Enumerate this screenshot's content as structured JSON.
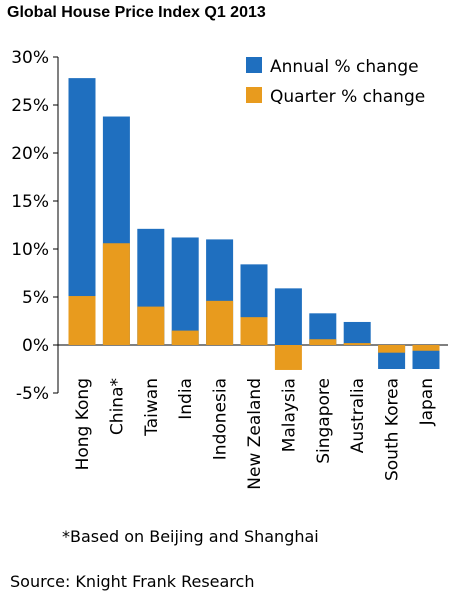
{
  "title": "Global House Price Index Q1 2013",
  "footnote": "*Based on Beijing and Shanghai",
  "source": "Source: Knight Frank Research",
  "chart_data": {
    "type": "bar",
    "title": "Global House Price Index Q1 2013",
    "categories": [
      "Hong Kong",
      "China*",
      "Taiwan",
      "India",
      "Indonesia",
      "New Zealand",
      "Malaysia",
      "Singapore",
      "Australia",
      "South Korea",
      "Japan"
    ],
    "series": [
      {
        "name": "Annual % change",
        "color": "#1F6FBF",
        "values": [
          27.8,
          23.8,
          12.1,
          11.2,
          11.0,
          8.4,
          5.9,
          3.3,
          2.4,
          -2.5,
          -2.5
        ]
      },
      {
        "name": "Quarter % change",
        "color": "#E89B1E",
        "values": [
          5.1,
          10.6,
          4.0,
          1.5,
          4.6,
          2.9,
          -2.6,
          0.6,
          0.2,
          -0.8,
          -0.6
        ]
      }
    ],
    "yticks": [
      "30%",
      "25%",
      "20%",
      "15%",
      "10%",
      "5%",
      "0%",
      "-5%"
    ],
    "ylim": [
      -5,
      30
    ],
    "grid": false,
    "legend_position": "top-right",
    "xlabel": "",
    "ylabel": ""
  }
}
